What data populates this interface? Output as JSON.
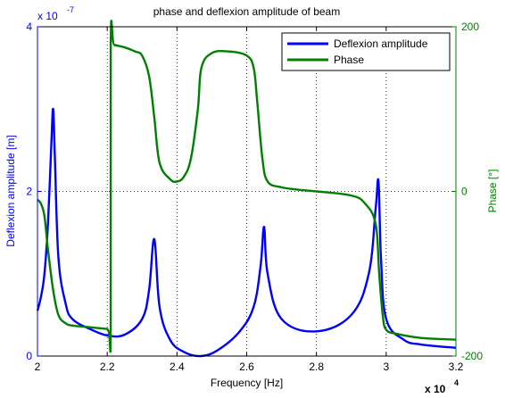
{
  "chart_data": {
    "type": "line",
    "title": "phase and deflexion amplitude of beam",
    "xlabel": "Frequency [Hz]",
    "x_exponent_label": "x 10",
    "x_exponent": "4",
    "x_ticks": [
      2,
      2.2,
      2.4,
      2.6,
      2.8,
      3.0,
      3.2
    ],
    "x_tick_labels": [
      "2",
      "2.2",
      "2.4",
      "2.6",
      "2.8",
      "3",
      "3.2"
    ],
    "xlim": [
      2,
      3.2
    ],
    "y_left": {
      "label": "Deflexion amplitude [m]",
      "exponent_label": "x 10",
      "exponent": "-7",
      "ticks": [
        0,
        2,
        4
      ],
      "tick_labels": [
        "0",
        "2",
        "4"
      ],
      "lim": [
        0,
        4
      ],
      "color": "#0000ff"
    },
    "y_right": {
      "label": "Phase [°]",
      "ticks": [
        -200,
        0,
        200
      ],
      "tick_labels": [
        "-200",
        "0",
        "200"
      ],
      "lim": [
        -200,
        200
      ],
      "color": "#008000"
    },
    "grid": true,
    "legend_position": "top-right",
    "series": [
      {
        "name": "Deflexion amplitude",
        "axis": "left",
        "color": "#0000ff",
        "x": [
          2.0,
          2.01,
          2.02,
          2.03,
          2.04,
          2.045,
          2.05,
          2.06,
          2.08,
          2.1,
          2.15,
          2.2,
          2.25,
          2.3,
          2.32,
          2.335,
          2.35,
          2.38,
          2.42,
          2.47,
          2.52,
          2.58,
          2.62,
          2.64,
          2.65,
          2.66,
          2.7,
          2.8,
          2.9,
          2.95,
          2.97,
          2.978,
          2.985,
          3.0,
          3.05,
          3.1,
          3.2
        ],
        "y": [
          0.55,
          0.72,
          1.0,
          1.6,
          2.6,
          3.0,
          2.4,
          1.2,
          0.65,
          0.45,
          0.33,
          0.25,
          0.26,
          0.45,
          0.8,
          1.42,
          0.6,
          0.2,
          0.05,
          0.0,
          0.08,
          0.3,
          0.6,
          1.1,
          1.57,
          1.0,
          0.45,
          0.3,
          0.5,
          1.0,
          1.8,
          2.12,
          1.2,
          0.45,
          0.2,
          0.14,
          0.1
        ]
      },
      {
        "name": "Phase",
        "axis": "right",
        "color": "#008000",
        "x": [
          2.0,
          2.01,
          2.02,
          2.03,
          2.045,
          2.06,
          2.08,
          2.1,
          2.15,
          2.2,
          2.21,
          2.2101,
          2.22,
          2.25,
          2.28,
          2.3,
          2.32,
          2.335,
          2.35,
          2.38,
          2.4,
          2.42,
          2.44,
          2.46,
          2.47,
          2.5,
          2.55,
          2.6,
          2.62,
          2.63,
          2.645,
          2.66,
          2.7,
          2.75,
          2.8,
          2.9,
          2.94,
          2.97,
          2.98,
          2.99,
          3.0,
          3.03,
          3.1,
          3.2
        ],
        "y": [
          -10,
          -15,
          -30,
          -70,
          -120,
          -150,
          -160,
          -163,
          -165,
          -167,
          -167,
          180,
          178,
          175,
          170,
          165,
          140,
          90,
          35,
          15,
          12,
          18,
          40,
          100,
          150,
          168,
          170,
          165,
          150,
          110,
          40,
          12,
          5,
          2,
          0,
          -5,
          -15,
          -40,
          -100,
          -150,
          -168,
          -173,
          -178,
          -180
        ]
      }
    ]
  }
}
